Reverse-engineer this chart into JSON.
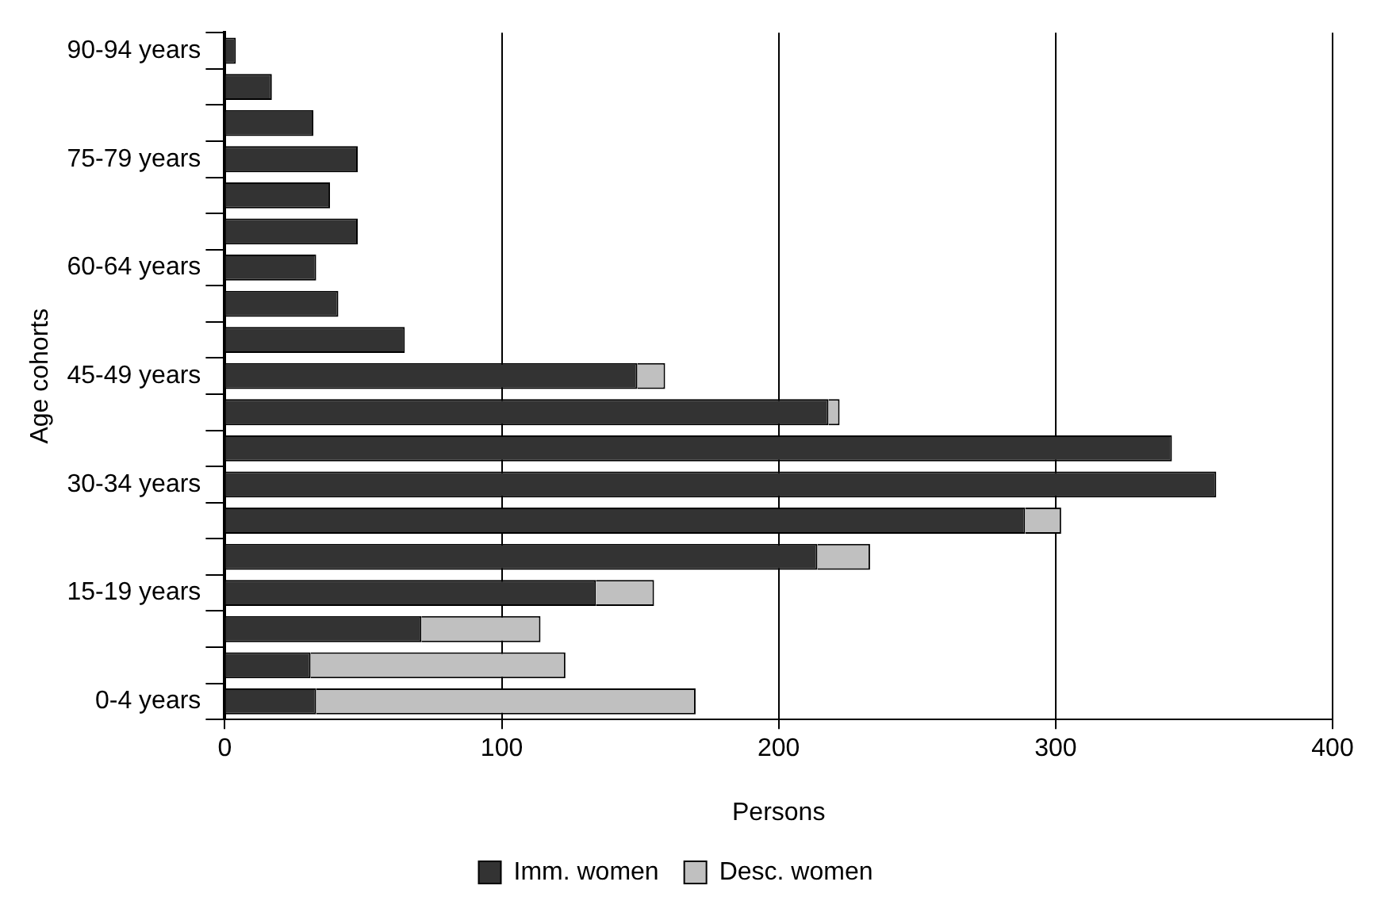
{
  "chart_data": {
    "type": "bar",
    "orientation": "horizontal",
    "stacked": true,
    "xlabel": "Persons",
    "ylabel": "Age cohorts",
    "categories": [
      "90-94 years",
      null,
      null,
      "75-79 years",
      null,
      null,
      "60-64 years",
      null,
      null,
      "45-49 years",
      null,
      null,
      "30-34 years",
      null,
      null,
      "15-19 years",
      null,
      null,
      "0-4 years"
    ],
    "series": [
      {
        "name": "Imm. women",
        "color": "#333333",
        "values": [
          4,
          17,
          32,
          48,
          38,
          48,
          33,
          41,
          65,
          149,
          218,
          342,
          358,
          289,
          214,
          134,
          71,
          31,
          33
        ]
      },
      {
        "name": "Desc. women",
        "color": "#c0c0c0",
        "values": [
          0,
          0,
          0,
          0,
          0,
          0,
          0,
          0,
          0,
          10,
          4,
          0,
          0,
          13,
          19,
          21,
          43,
          92,
          137
        ]
      }
    ],
    "xlim": [
      0,
      400
    ],
    "xticks": [
      0,
      100,
      200,
      300,
      400
    ],
    "grid": "x",
    "legend": "bottom"
  }
}
